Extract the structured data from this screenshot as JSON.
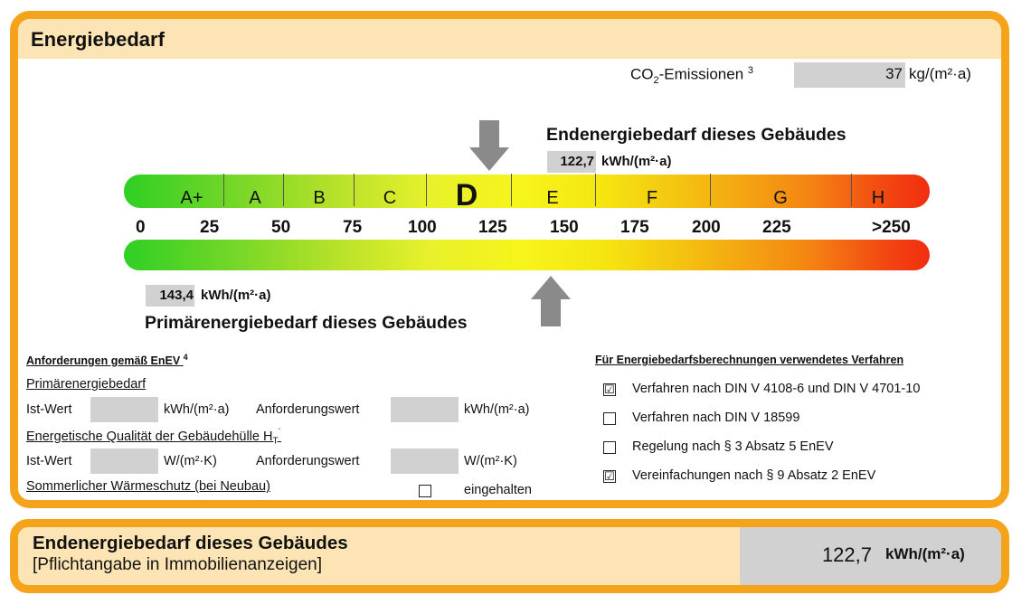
{
  "main": {
    "title": "Energiebedarf",
    "co2_label": "CO",
    "co2_sub": "2",
    "co2_label_rest": "-Emissionen",
    "co2_footnote": "3",
    "co2_value": "37",
    "co2_unit": "kg/(m²·a)",
    "end_title": "Endenergiebedarf dieses Gebäudes",
    "end_value": "122,7",
    "end_unit": "kWh/(m²·a)",
    "primary_value": "143,4",
    "primary_unit": "kWh/(m²·a)",
    "primary_title": "Primärenergiebedarf dieses Gebäudes",
    "end_pointer_value": 122.7,
    "primary_pointer_value": 143.4
  },
  "scale": {
    "classes": [
      "A+",
      "A",
      "B",
      "C",
      "D",
      "E",
      "F",
      "G",
      "H"
    ],
    "active_class": "D",
    "ticks": [
      "0",
      "25",
      "50",
      "75",
      "100",
      "125",
      "150",
      "175",
      "200",
      "225",
      ">250"
    ]
  },
  "requirements": {
    "title": "Anforderungen gemäß EnEV",
    "title_footnote": "4",
    "primary_label": "Primärenergiebedarf",
    "ist_wert": "Ist-Wert",
    "unit_kwh": "kWh/(m²·a)",
    "anforderungswert": "Anforderungswert",
    "hull_label": "Energetische Qualität der Gebäudehülle H",
    "hull_sub": "T",
    "hull_sup": "´",
    "unit_w": "W/(m²·K)",
    "summer_label": "Sommerlicher Wärmeschutz (bei Neubau)",
    "eingehalten": "eingehalten"
  },
  "methods": {
    "title": "Für Energiebedarfsberechnungen verwendetes Verfahren",
    "items": [
      {
        "label": "Verfahren nach DIN V 4108-6 und DIN V 4701-10",
        "checked": true,
        "mark": "☑"
      },
      {
        "label": "Verfahren nach DIN V 18599",
        "checked": false,
        "mark": ""
      },
      {
        "label": "Regelung nach § 3 Absatz 5 EnEV",
        "checked": false,
        "mark": ""
      },
      {
        "label": "Vereinfachungen nach § 9 Absatz 2 EnEV",
        "checked": true,
        "mark": "☑"
      }
    ]
  },
  "bottom": {
    "title": "Endenergiebedarf dieses Gebäudes",
    "subtitle": "[Pflichtangabe in Immobilienanzeigen]",
    "value": "122,7",
    "unit": "kWh/(m²·a)"
  },
  "colors": {
    "frame": "#f5a31a",
    "header_fill": "#fde4b4",
    "value_box": "#d1d1d1",
    "arrow": "#8a8a8a"
  }
}
